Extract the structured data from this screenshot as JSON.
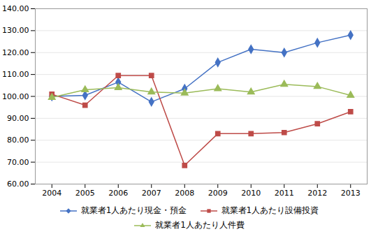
{
  "chart_data": {
    "type": "line",
    "x": [
      2004,
      2005,
      2006,
      2007,
      2008,
      2009,
      2010,
      2011,
      2012,
      2013
    ],
    "series": [
      {
        "name": "就業者1人あたり現金・預金",
        "color": "#4472C4",
        "marker": "diamond",
        "values": [
          100.0,
          100.5,
          106.5,
          97.5,
          103.5,
          115.5,
          121.5,
          120.0,
          124.5,
          128.0
        ]
      },
      {
        "name": "就業者1人あたり設備投資",
        "color": "#BE4B48",
        "marker": "square",
        "values": [
          101.0,
          96.0,
          109.5,
          109.5,
          68.5,
          83.0,
          83.0,
          83.5,
          87.5,
          93.0
        ]
      },
      {
        "name": "就業者1人あたり人件費",
        "color": "#9BBB59",
        "marker": "triangle",
        "values": [
          99.5,
          103.0,
          104.0,
          102.0,
          101.5,
          103.5,
          102.0,
          105.5,
          104.5,
          100.5
        ]
      }
    ],
    "xlim": [
      2003.5,
      2013.5
    ],
    "xticks": [
      2004,
      2005,
      2006,
      2007,
      2008,
      2009,
      2010,
      2011,
      2012,
      2013
    ],
    "ylim": [
      60.0,
      140.0
    ],
    "yticks": [
      {
        "value": 60,
        "label": "60.00"
      },
      {
        "value": 70,
        "label": "70.00"
      },
      {
        "value": 80,
        "label": "80.00"
      },
      {
        "value": 90,
        "label": "90.00"
      },
      {
        "value": 100,
        "label": "100.00"
      },
      {
        "value": 110,
        "label": "110.00"
      },
      {
        "value": 120,
        "label": "120.00"
      },
      {
        "value": 130,
        "label": "130.00"
      },
      {
        "value": 140,
        "label": "140.00"
      }
    ],
    "grid": true,
    "legend": "bottom"
  }
}
